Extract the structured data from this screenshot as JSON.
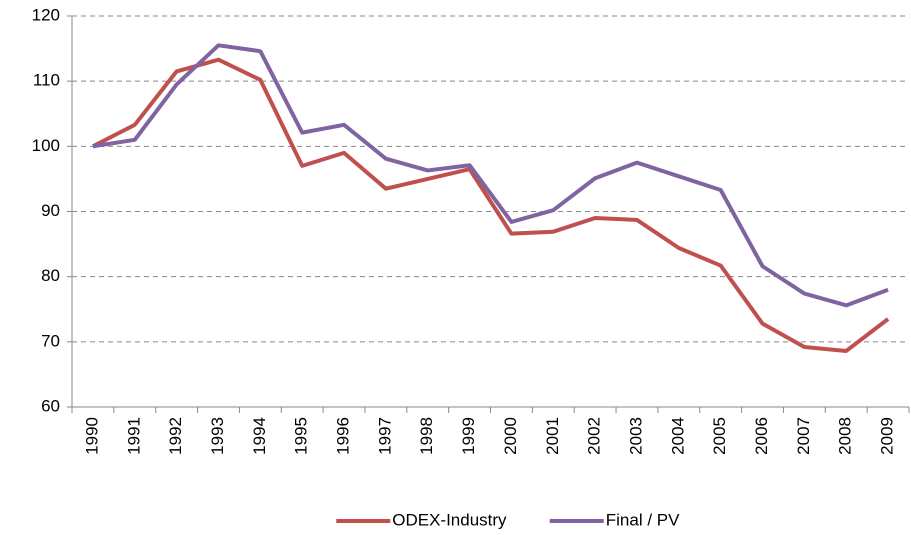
{
  "chart_data": {
    "type": "line",
    "categories": [
      "1990",
      "1991",
      "1992",
      "1993",
      "1994",
      "1995",
      "1996",
      "1997",
      "1998",
      "1999",
      "2000",
      "2001",
      "2002",
      "2003",
      "2004",
      "2005",
      "2006",
      "2007",
      "2008",
      "2009"
    ],
    "series": [
      {
        "name": "ODEX-Industry",
        "color": "#c0504d",
        "values": [
          100,
          103.3,
          111.5,
          113.3,
          110.2,
          97,
          99,
          93.5,
          95,
          96.5,
          86.6,
          86.9,
          89,
          88.7,
          84.4,
          81.7,
          72.8,
          69.2,
          68.6,
          73.5
        ]
      },
      {
        "name": "Final / PV",
        "color": "#8064a2",
        "values": [
          100,
          101,
          109.5,
          115.5,
          114.6,
          102.1,
          103.3,
          98.1,
          96.3,
          97.1,
          88.4,
          90.2,
          95.1,
          97.5,
          95.4,
          93.3,
          81.6,
          77.4,
          75.6,
          78
        ]
      }
    ],
    "ylim": [
      60,
      120
    ],
    "yticks": [
      60,
      70,
      80,
      90,
      100,
      110,
      120
    ],
    "grid": true,
    "legend": "bottom"
  }
}
